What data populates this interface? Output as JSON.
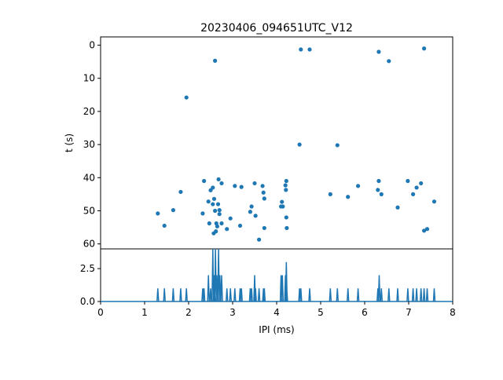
{
  "chart_data": [
    {
      "type": "scatter",
      "title": "20230406_094651UTC_V12",
      "xlabel": "",
      "ylabel": "t (s)",
      "xlim": [
        0,
        8
      ],
      "ylim": [
        61.5,
        -2.5
      ],
      "y_inverted": true,
      "y_ticks": [
        0,
        10,
        20,
        30,
        40,
        50,
        60
      ],
      "y_tick_labels": [
        "0",
        "10",
        "20",
        "30",
        "40",
        "50",
        "60"
      ],
      "marker_color": "#1f77b4",
      "points": [
        [
          1.3,
          50.8
        ],
        [
          1.45,
          54.5
        ],
        [
          1.65,
          49.8
        ],
        [
          1.82,
          44.3
        ],
        [
          1.95,
          15.8
        ],
        [
          2.32,
          50.8
        ],
        [
          2.35,
          41.0
        ],
        [
          2.45,
          47.2
        ],
        [
          2.47,
          53.8
        ],
        [
          2.5,
          43.8
        ],
        [
          2.55,
          43.0
        ],
        [
          2.55,
          48.0
        ],
        [
          2.57,
          56.8
        ],
        [
          2.58,
          46.4
        ],
        [
          2.6,
          4.7
        ],
        [
          2.6,
          50.0
        ],
        [
          2.62,
          56.2
        ],
        [
          2.63,
          53.8
        ],
        [
          2.65,
          54.7
        ],
        [
          2.67,
          48.0
        ],
        [
          2.68,
          40.5
        ],
        [
          2.7,
          49.8
        ],
        [
          2.7,
          51.0
        ],
        [
          2.75,
          41.7
        ],
        [
          2.75,
          53.8
        ],
        [
          2.87,
          55.5
        ],
        [
          2.95,
          52.3
        ],
        [
          3.05,
          42.5
        ],
        [
          3.17,
          54.5
        ],
        [
          3.2,
          42.8
        ],
        [
          3.4,
          50.3
        ],
        [
          3.43,
          48.7
        ],
        [
          3.5,
          41.7
        ],
        [
          3.52,
          51.5
        ],
        [
          3.6,
          58.7
        ],
        [
          3.68,
          42.5
        ],
        [
          3.7,
          44.5
        ],
        [
          3.72,
          46.3
        ],
        [
          3.72,
          55.2
        ],
        [
          4.1,
          48.7
        ],
        [
          4.12,
          47.3
        ],
        [
          4.14,
          48.7
        ],
        [
          4.2,
          42.3
        ],
        [
          4.21,
          43.7
        ],
        [
          4.22,
          41.0
        ],
        [
          4.22,
          52.0
        ],
        [
          4.23,
          55.2
        ],
        [
          4.52,
          30.0
        ],
        [
          4.55,
          1.3
        ],
        [
          4.75,
          1.3
        ],
        [
          5.22,
          45.0
        ],
        [
          5.38,
          30.2
        ],
        [
          5.62,
          45.8
        ],
        [
          5.85,
          42.5
        ],
        [
          6.3,
          43.7
        ],
        [
          6.32,
          2.0
        ],
        [
          6.32,
          41.0
        ],
        [
          6.38,
          45.0
        ],
        [
          6.55,
          4.8
        ],
        [
          6.75,
          49.0
        ],
        [
          6.98,
          41.0
        ],
        [
          7.1,
          45.0
        ],
        [
          7.18,
          43.0
        ],
        [
          7.28,
          41.7
        ],
        [
          7.35,
          1.0
        ],
        [
          7.35,
          56.0
        ],
        [
          7.42,
          55.5
        ],
        [
          7.58,
          47.2
        ]
      ]
    },
    {
      "type": "line",
      "xlabel": "IPI (ms)",
      "ylabel": "",
      "xlim": [
        0,
        8
      ],
      "ylim": [
        0,
        4
      ],
      "x_ticks": [
        0,
        1,
        2,
        3,
        4,
        5,
        6,
        7,
        8
      ],
      "x_tick_labels": [
        "0",
        "1",
        "2",
        "3",
        "4",
        "5",
        "6",
        "7",
        "8"
      ],
      "y_ticks": [
        0.0,
        2.5
      ],
      "y_tick_labels": [
        "0.0",
        "2.5"
      ],
      "line_color": "#1f77b4",
      "peaks": [
        [
          1.3,
          1
        ],
        [
          1.45,
          1
        ],
        [
          1.65,
          1
        ],
        [
          1.82,
          1
        ],
        [
          1.95,
          1
        ],
        [
          2.32,
          1
        ],
        [
          2.35,
          1
        ],
        [
          2.45,
          2
        ],
        [
          2.5,
          1
        ],
        [
          2.55,
          4
        ],
        [
          2.58,
          2
        ],
        [
          2.61,
          4
        ],
        [
          2.64,
          2
        ],
        [
          2.68,
          4
        ],
        [
          2.71,
          2
        ],
        [
          2.75,
          2
        ],
        [
          2.87,
          1
        ],
        [
          2.95,
          1
        ],
        [
          3.05,
          1
        ],
        [
          3.17,
          1
        ],
        [
          3.2,
          1
        ],
        [
          3.4,
          1
        ],
        [
          3.43,
          1
        ],
        [
          3.5,
          2
        ],
        [
          3.52,
          1
        ],
        [
          3.6,
          1
        ],
        [
          3.7,
          1
        ],
        [
          3.72,
          1
        ],
        [
          4.1,
          2
        ],
        [
          4.13,
          2
        ],
        [
          4.2,
          2
        ],
        [
          4.22,
          3
        ],
        [
          4.23,
          1
        ],
        [
          4.52,
          1
        ],
        [
          4.55,
          1
        ],
        [
          4.75,
          1
        ],
        [
          5.22,
          1
        ],
        [
          5.38,
          1
        ],
        [
          5.62,
          1
        ],
        [
          5.85,
          1
        ],
        [
          6.3,
          1
        ],
        [
          6.33,
          2
        ],
        [
          6.38,
          1
        ],
        [
          6.55,
          1
        ],
        [
          6.75,
          1
        ],
        [
          6.98,
          1
        ],
        [
          7.1,
          1
        ],
        [
          7.18,
          1
        ],
        [
          7.28,
          1
        ],
        [
          7.35,
          1
        ],
        [
          7.42,
          1
        ],
        [
          7.58,
          1
        ]
      ]
    }
  ]
}
